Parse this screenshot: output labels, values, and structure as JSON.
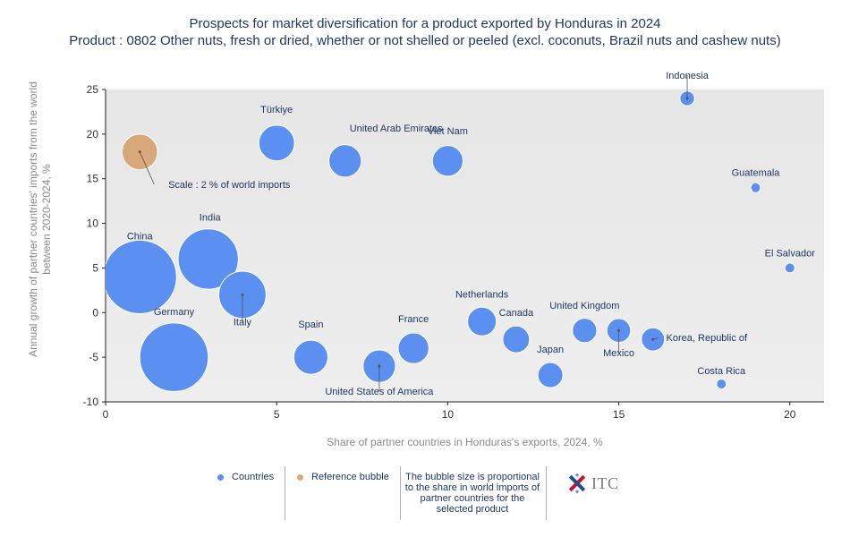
{
  "chart_data": {
    "type": "scatter",
    "title": "Prospects for market diversification for a product exported by Honduras in 2024",
    "subtitle": "Product : 0802 Other nuts, fresh or dried, whether or not shelled or peeled (excl. coconuts, Brazil nuts and cashew nuts)",
    "xlabel": "Share of partner countries in Honduras's exports, 2024, %",
    "ylabel": "Annual growth of partner countries' imports from the world between 2020-2024, %",
    "xlim": [
      0,
      21
    ],
    "ylim": [
      -10,
      25
    ],
    "xticks": [
      0,
      5,
      10,
      15,
      20
    ],
    "yticks": [
      -10,
      -5,
      0,
      5,
      10,
      15,
      20,
      25
    ],
    "grid": false,
    "legend_position": "bottom",
    "series": [
      {
        "name": "Countries",
        "color": "#5b8ff0",
        "points": [
          {
            "label": "Indonesia",
            "x": 17.0,
            "y": 24.0,
            "size": 0.2
          },
          {
            "label": "Türkiye",
            "x": 5.0,
            "y": 19.0,
            "size": 2.0
          },
          {
            "label": "United Arab Emirates",
            "x": 7.0,
            "y": 17.0,
            "size": 1.6
          },
          {
            "label": "Viet Nam",
            "x": 10.0,
            "y": 17.0,
            "size": 1.4
          },
          {
            "label": "Guatemala",
            "x": 19.0,
            "y": 14.0,
            "size": 0.05
          },
          {
            "label": "China",
            "x": 1.0,
            "y": 4.0,
            "size": 10.0
          },
          {
            "label": "India",
            "x": 3.0,
            "y": 6.0,
            "size": 6.5
          },
          {
            "label": "Italy",
            "x": 4.0,
            "y": 2.0,
            "size": 3.8
          },
          {
            "label": "El Salvador",
            "x": 20.0,
            "y": 5.0,
            "size": 0.05
          },
          {
            "label": "Germany",
            "x": 2.0,
            "y": -5.0,
            "size": 8.6
          },
          {
            "label": "Spain",
            "x": 6.0,
            "y": -5.0,
            "size": 1.8
          },
          {
            "label": "United States of America",
            "x": 8.0,
            "y": -6.0,
            "size": 1.6
          },
          {
            "label": "France",
            "x": 9.0,
            "y": -4.0,
            "size": 1.4
          },
          {
            "label": "Netherlands",
            "x": 11.0,
            "y": -1.0,
            "size": 1.2
          },
          {
            "label": "Canada",
            "x": 12.0,
            "y": -3.0,
            "size": 1.0
          },
          {
            "label": "Japan",
            "x": 13.0,
            "y": -7.0,
            "size": 0.85
          },
          {
            "label": "United Kingdom",
            "x": 14.0,
            "y": -2.0,
            "size": 0.8
          },
          {
            "label": "Mexico",
            "x": 15.0,
            "y": -2.0,
            "size": 0.75
          },
          {
            "label": "Korea, Republic of",
            "x": 16.0,
            "y": -3.0,
            "size": 0.7
          },
          {
            "label": "Costa Rica",
            "x": 18.0,
            "y": -8.0,
            "size": 0.05
          }
        ]
      },
      {
        "name": "Reference bubble",
        "color": "#d9a87a",
        "points": [
          {
            "label": "Scale : 2 % of world imports",
            "x": 1.0,
            "y": 18.0,
            "size": 2.0
          }
        ]
      }
    ]
  },
  "legend": {
    "countries_label": "Countries",
    "reference_label": "Reference bubble",
    "note": "The bubble size is proportional to the share in world imports of partner countries for the selected product",
    "logo_text": "ITC"
  }
}
